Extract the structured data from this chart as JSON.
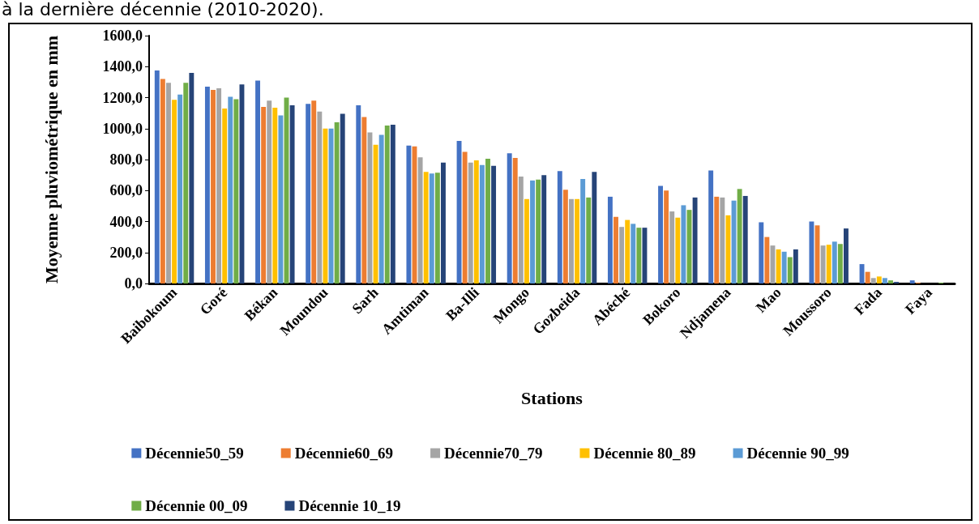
{
  "chart_data": {
    "type": "bar",
    "xlabel": "Stations",
    "ylabel": "Moyenne pluviométrique en mm",
    "annotations": [
      "à la dernière décennie (2010-2020)."
    ],
    "categories": [
      "Baibokoum",
      "Goré",
      "Békan",
      "Moundou",
      "Sarh",
      "Amtiman",
      "Ba-Illi",
      "Mongo",
      "Gozbeida",
      "Abéché",
      "Bokoro",
      "Ndjamena",
      "Mao",
      "Moussoro",
      "Fada",
      "Faya"
    ],
    "series": [
      {
        "name": "Décennie50_59",
        "color": "#4472c4",
        "values": [
          1375,
          1270,
          1310,
          1160,
          1150,
          890,
          920,
          840,
          725,
          560,
          630,
          730,
          395,
          400,
          125,
          20
        ]
      },
      {
        "name": "Décennie60_69",
        "color": "#ed7d31",
        "values": [
          1320,
          1250,
          1140,
          1180,
          1075,
          885,
          850,
          810,
          605,
          430,
          600,
          560,
          300,
          375,
          75,
          5
        ]
      },
      {
        "name": "Décennie70_79",
        "color": "#a5a5a5",
        "values": [
          1295,
          1260,
          1180,
          1110,
          975,
          815,
          780,
          690,
          545,
          365,
          465,
          555,
          245,
          245,
          35,
          null
        ]
      },
      {
        "name": "Décennie 80_89",
        "color": "#ffc000",
        "values": [
          1185,
          1130,
          1135,
          1000,
          895,
          720,
          795,
          545,
          545,
          410,
          425,
          440,
          220,
          250,
          45,
          null
        ]
      },
      {
        "name": "Décennie 90_99",
        "color": "#5b9bd5",
        "values": [
          1220,
          1205,
          1085,
          1000,
          960,
          710,
          765,
          665,
          675,
          385,
          505,
          535,
          205,
          270,
          35,
          null
        ]
      },
      {
        "name": "Décennie 00_09",
        "color": "#70ad47",
        "values": [
          1295,
          1190,
          1200,
          1040,
          1020,
          715,
          805,
          670,
          555,
          360,
          475,
          610,
          170,
          255,
          20,
          5
        ]
      },
      {
        "name": "Décennie 10_19",
        "color": "#264478",
        "values": [
          1360,
          1285,
          1150,
          1095,
          1025,
          780,
          760,
          700,
          720,
          360,
          555,
          565,
          220,
          355,
          10,
          null
        ]
      }
    ],
    "ylim": [
      0,
      1600
    ],
    "yticks": [
      {
        "value": 0,
        "label": "0,0"
      },
      {
        "value": 200,
        "label": "200,0"
      },
      {
        "value": 400,
        "label": "400,0"
      },
      {
        "value": 600,
        "label": "600,0"
      },
      {
        "value": 800,
        "label": "800,0"
      },
      {
        "value": 1000,
        "label": "1000,0"
      },
      {
        "value": 1200,
        "label": "1200,0"
      },
      {
        "value": 1400,
        "label": "1400,0"
      },
      {
        "value": 1600,
        "label": "1600,0"
      }
    ],
    "grid": false,
    "legend": "bottom"
  }
}
